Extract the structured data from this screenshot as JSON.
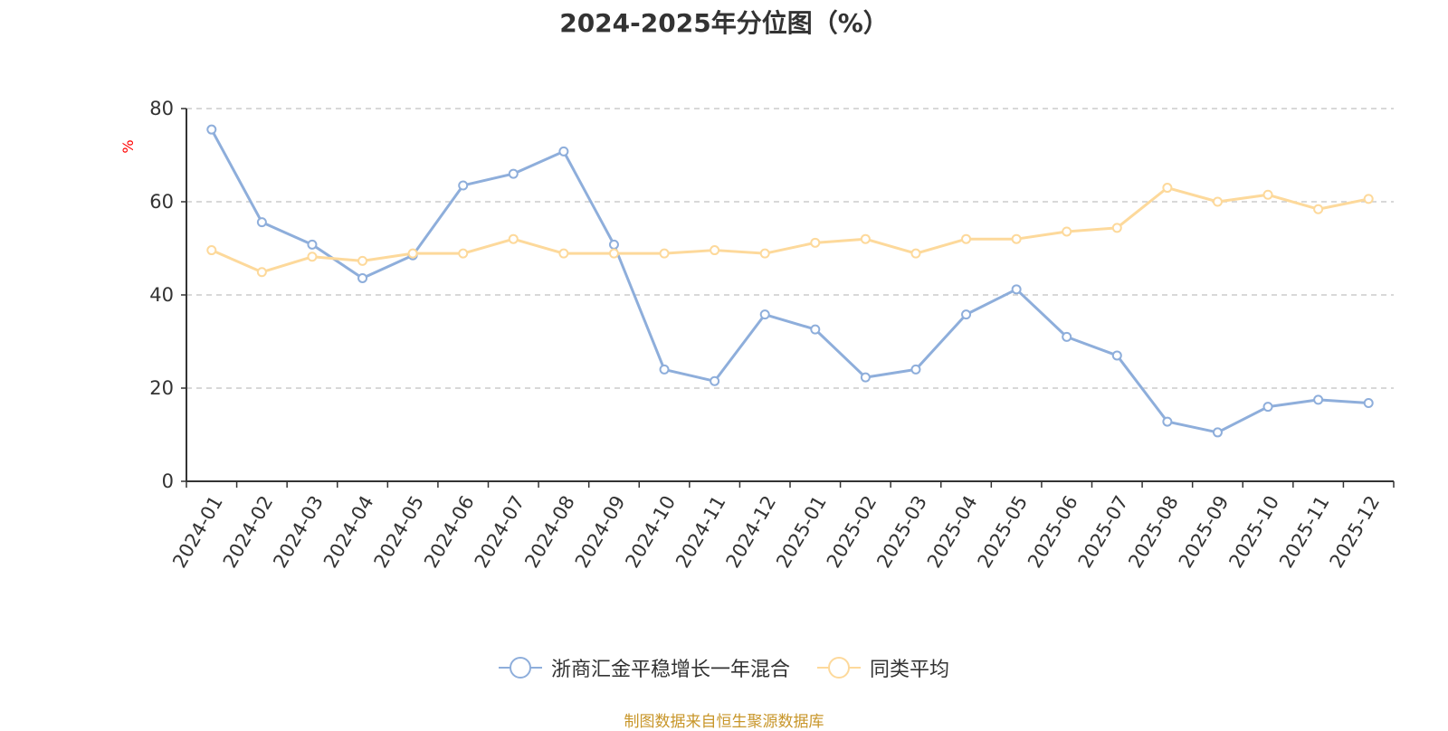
{
  "chart_data": {
    "type": "line",
    "title": "2024-2025年分位图（%）",
    "ylabel": "%",
    "xlabel": "",
    "ylim": [
      0,
      80
    ],
    "yticks": [
      0,
      20,
      40,
      60,
      80
    ],
    "grid": true,
    "legend_position": "bottom",
    "categories": [
      "2024-01",
      "2024-02",
      "2024-03",
      "2024-04",
      "2024-05",
      "2024-06",
      "2024-07",
      "2024-08",
      "2024-09",
      "2024-10",
      "2024-11",
      "2024-12",
      "2025-01",
      "2025-02",
      "2025-03",
      "2025-04",
      "2025-05",
      "2025-06",
      "2025-07",
      "2025-08",
      "2025-09",
      "2025-10",
      "2025-11",
      "2025-12"
    ],
    "series": [
      {
        "name": "浙商汇金平稳增长一年混合",
        "color": "#8eaedb",
        "values": [
          75.5,
          55.6,
          50.8,
          43.6,
          48.5,
          63.5,
          66.0,
          70.8,
          50.8,
          24.0,
          21.5,
          35.8,
          32.6,
          22.3,
          24.0,
          35.8,
          41.2,
          31.0,
          27.0,
          12.8,
          10.5,
          16.0,
          17.5,
          16.8
        ]
      },
      {
        "name": "同类平均",
        "color": "#fdd99b",
        "values": [
          49.6,
          44.9,
          48.2,
          47.3,
          48.9,
          48.9,
          52.0,
          48.9,
          48.9,
          48.9,
          49.6,
          48.9,
          51.2,
          52.0,
          48.9,
          52.0,
          52.0,
          53.6,
          54.4,
          63.0,
          60.0,
          61.5,
          58.4,
          60.6
        ]
      }
    ]
  },
  "source_note": "制图数据来自恒生聚源数据库"
}
